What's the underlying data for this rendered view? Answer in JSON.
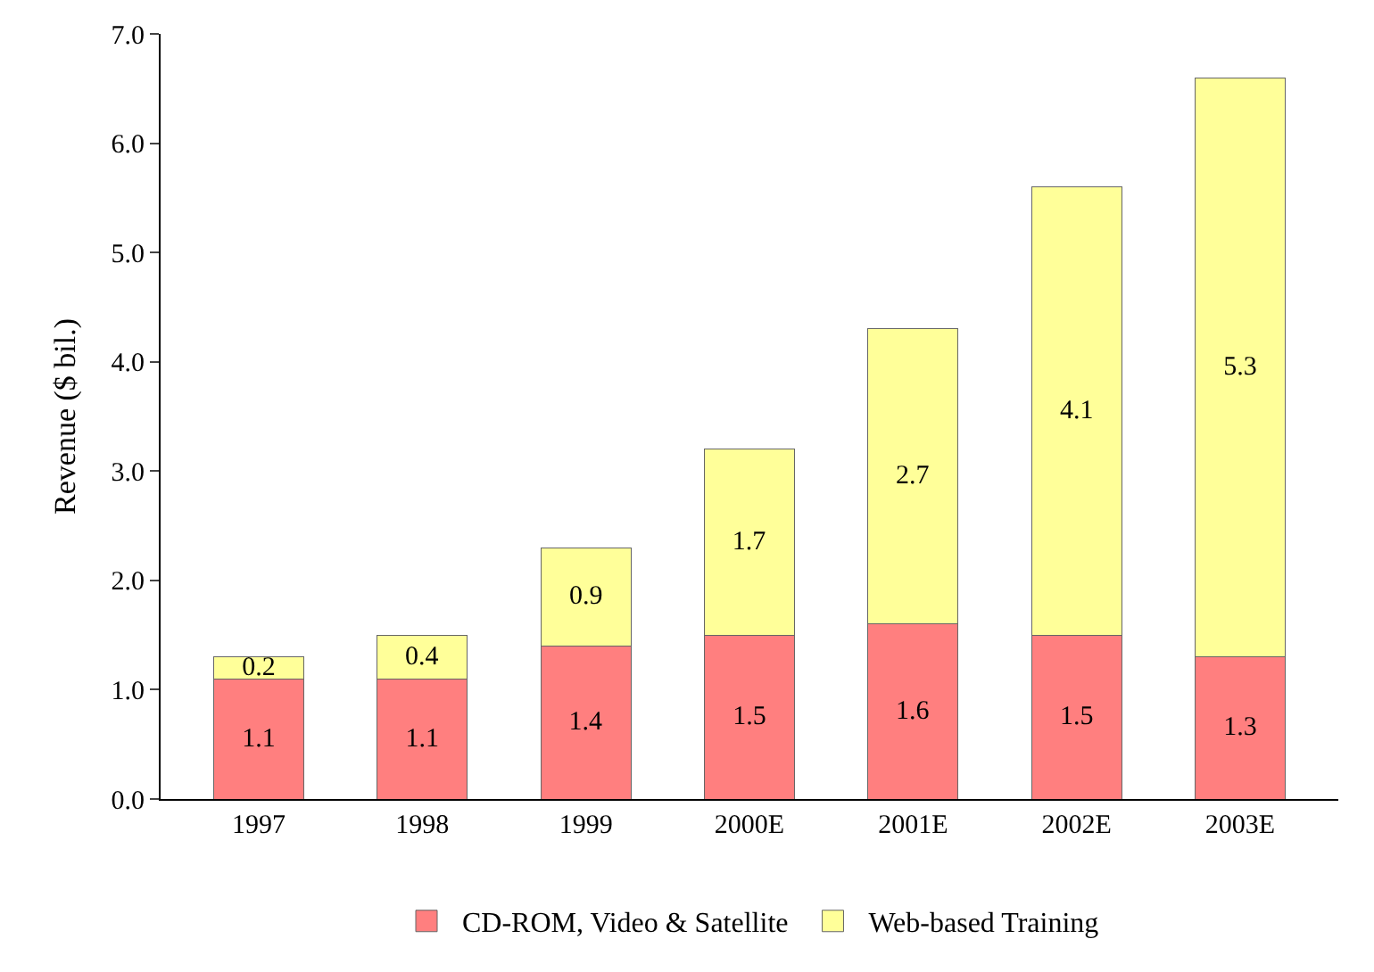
{
  "chart_data": {
    "type": "bar",
    "stacked": true,
    "ylabel": "Revenue ($ bil.)",
    "categories": [
      "1997",
      "1998",
      "1999",
      "2000E",
      "2001E",
      "2002E",
      "2003E"
    ],
    "series": [
      {
        "name": "CD-ROM, Video & Satellite",
        "color": "#ff7f7f",
        "values": [
          1.1,
          1.1,
          1.4,
          1.5,
          1.6,
          1.5,
          1.3
        ]
      },
      {
        "name": "Web-based Training",
        "color": "#ffff99",
        "values": [
          0.2,
          0.4,
          0.9,
          1.7,
          2.7,
          4.1,
          5.3
        ]
      }
    ],
    "ylim": [
      0,
      7
    ],
    "yticks": [
      {
        "value": 0,
        "label": "0.0"
      },
      {
        "value": 1,
        "label": "1.0"
      },
      {
        "value": 2,
        "label": "2.0"
      },
      {
        "value": 3,
        "label": "3.0"
      },
      {
        "value": 4,
        "label": "4.0"
      },
      {
        "value": 5,
        "label": "5.0"
      },
      {
        "value": 6,
        "label": "6.0"
      },
      {
        "value": 7,
        "label": "7.0"
      }
    ],
    "data_labels": true,
    "legend": "bottom"
  }
}
